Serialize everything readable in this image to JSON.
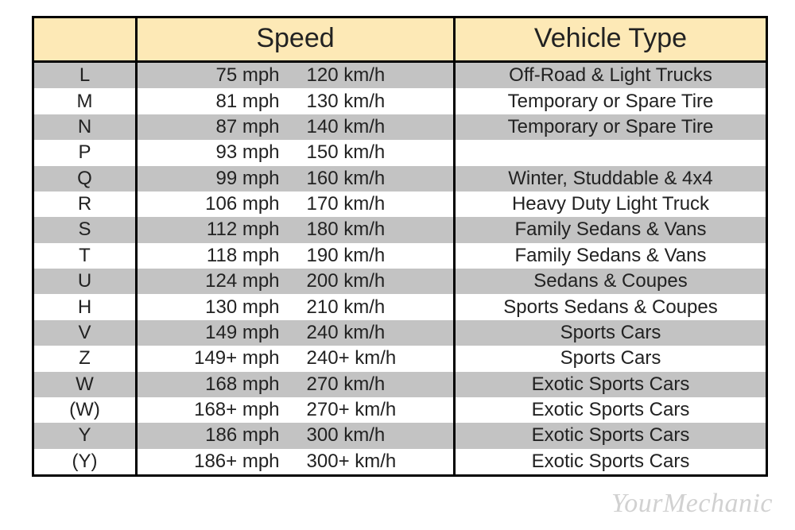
{
  "table": {
    "headers": {
      "code": "",
      "speed": "Speed",
      "type": "Vehicle Type"
    },
    "header_bg": "#fde9b6",
    "border_color": "#000000",
    "stripe_odd": "#c3c3c3",
    "stripe_even": "#ffffff",
    "header_fontsize": 34,
    "cell_fontsize": 24,
    "columns": [
      "code",
      "speed_mph",
      "speed_kmh",
      "vehicle_type"
    ],
    "col_widths": {
      "code": 130,
      "speed": 400,
      "type": 390
    },
    "rows": [
      {
        "code": "L",
        "mph": "75 mph",
        "kmh": "120 km/h",
        "type": "Off-Road & Light Trucks"
      },
      {
        "code": "M",
        "mph": "81 mph",
        "kmh": "130 km/h",
        "type": "Temporary or Spare Tire"
      },
      {
        "code": "N",
        "mph": "87 mph",
        "kmh": "140 km/h",
        "type": "Temporary or Spare Tire"
      },
      {
        "code": "P",
        "mph": "93 mph",
        "kmh": "150 km/h",
        "type": ""
      },
      {
        "code": "Q",
        "mph": "99 mph",
        "kmh": "160 km/h",
        "type": "Winter, Studdable & 4x4"
      },
      {
        "code": "R",
        "mph": "106 mph",
        "kmh": "170 km/h",
        "type": "Heavy Duty Light Truck"
      },
      {
        "code": "S",
        "mph": "112 mph",
        "kmh": "180 km/h",
        "type": "Family Sedans & Vans"
      },
      {
        "code": "T",
        "mph": "118 mph",
        "kmh": "190 km/h",
        "type": "Family Sedans & Vans"
      },
      {
        "code": "U",
        "mph": "124 mph",
        "kmh": "200 km/h",
        "type": "Sedans & Coupes"
      },
      {
        "code": "H",
        "mph": "130 mph",
        "kmh": "210 km/h",
        "type": "Sports Sedans & Coupes"
      },
      {
        "code": "V",
        "mph": "149 mph",
        "kmh": "240 km/h",
        "type": "Sports Cars"
      },
      {
        "code": "Z",
        "mph": "149+ mph",
        "kmh": "240+ km/h",
        "type": "Sports Cars"
      },
      {
        "code": "W",
        "mph": "168 mph",
        "kmh": "270 km/h",
        "type": "Exotic Sports Cars"
      },
      {
        "code": "(W)",
        "mph": "168+ mph",
        "kmh": "270+ km/h",
        "type": "Exotic Sports Cars"
      },
      {
        "code": "Y",
        "mph": "186 mph",
        "kmh": "300 km/h",
        "type": "Exotic Sports Cars"
      },
      {
        "code": "(Y)",
        "mph": "186+ mph",
        "kmh": "300+ km/h",
        "type": "Exotic Sports Cars"
      }
    ]
  },
  "watermark": "YourMechanic"
}
